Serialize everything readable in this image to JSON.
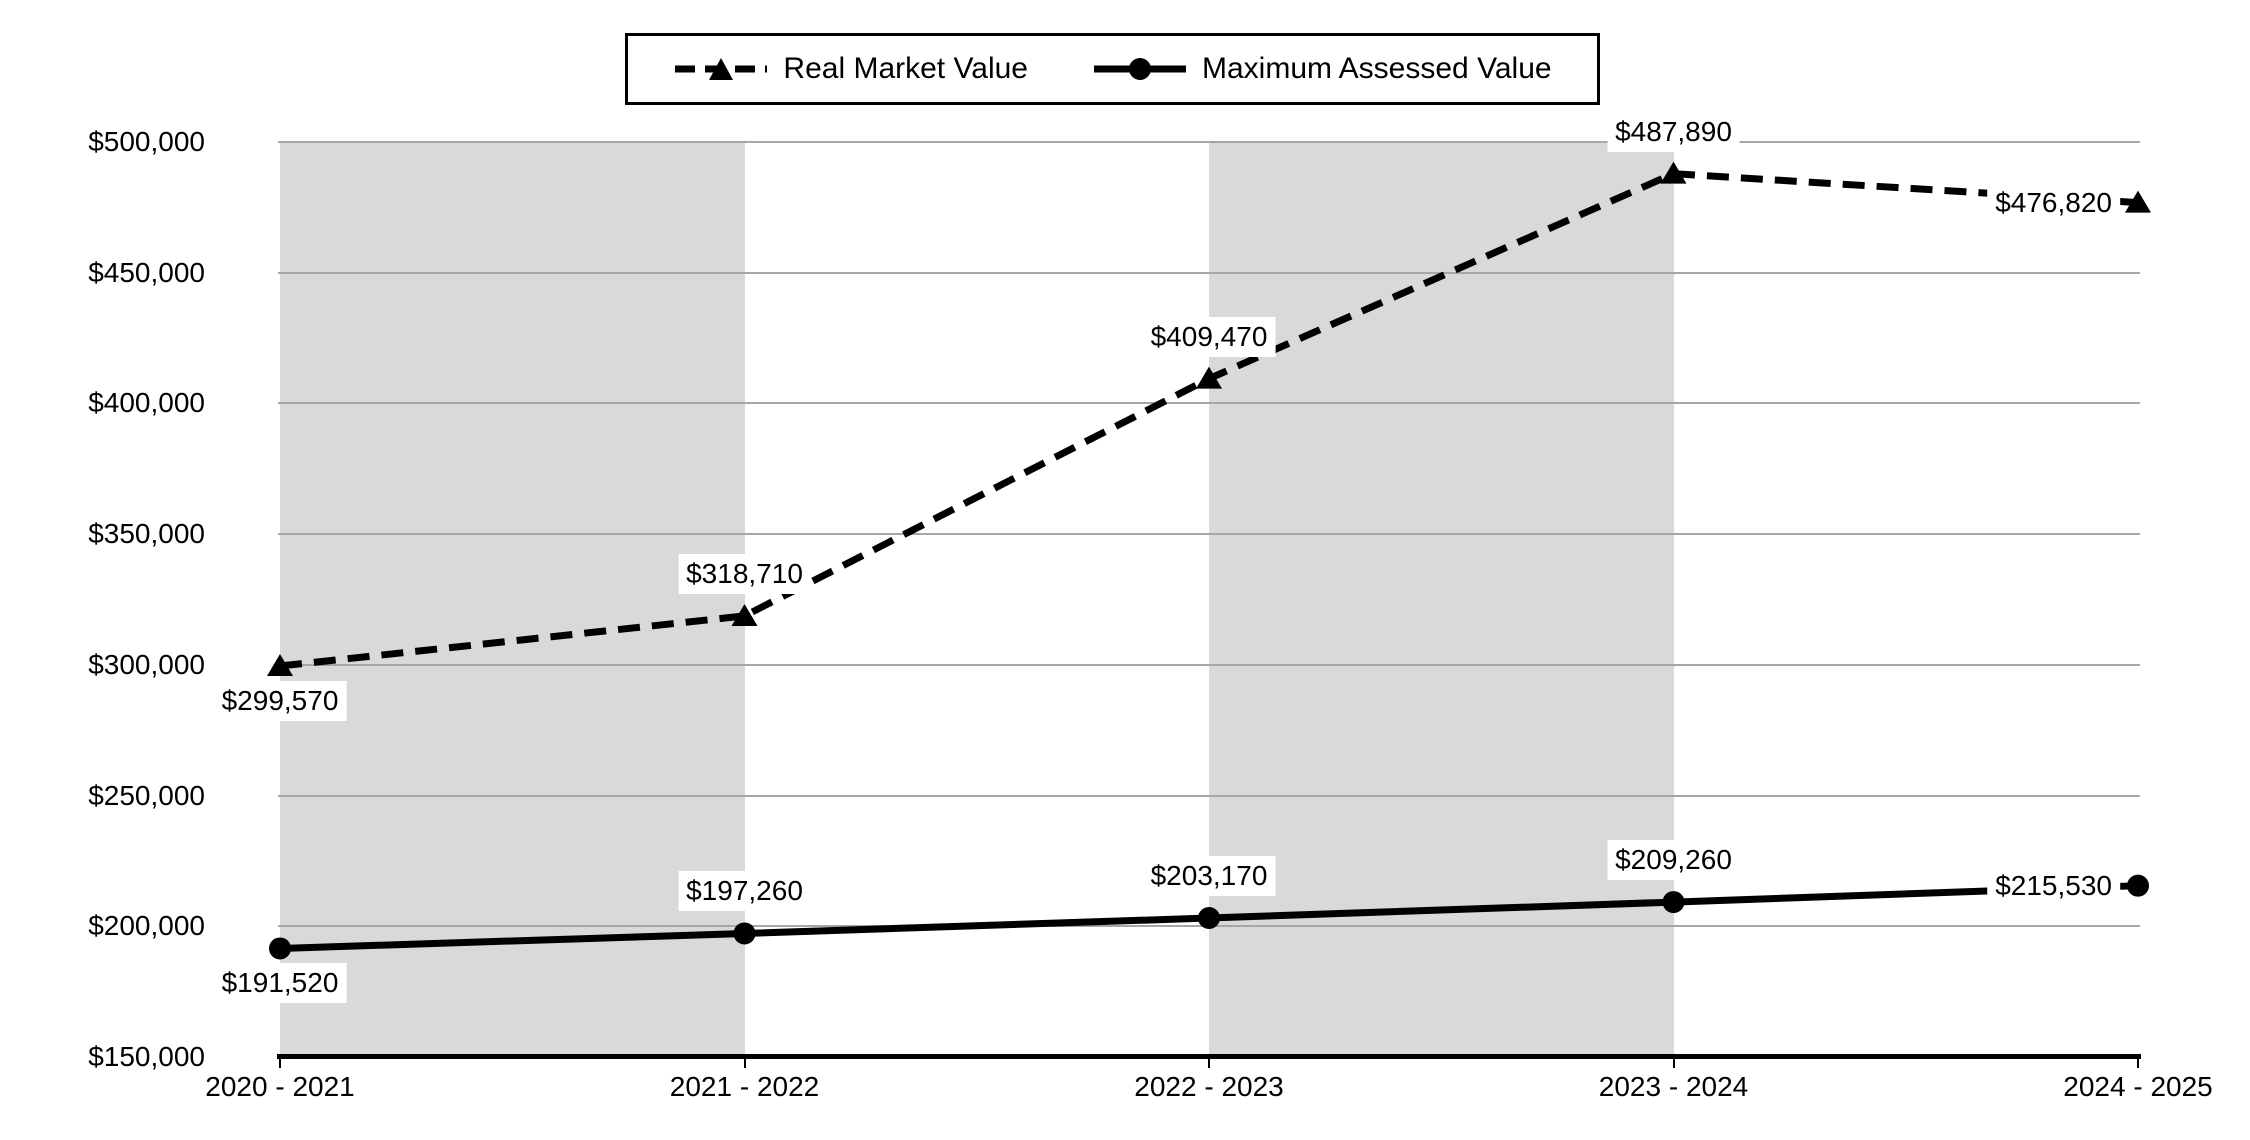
{
  "chart_data": {
    "type": "line",
    "title": "",
    "categories": [
      "2020 - 2021",
      "2021 - 2022",
      "2022 - 2023",
      "2023 - 2024",
      "2024 - 2025"
    ],
    "series": [
      {
        "name": "Real Market Value",
        "line_style": "dashed",
        "marker": "triangle",
        "values": [
          299570,
          318710,
          409470,
          487890,
          476820
        ],
        "labels": [
          "$299,570",
          "$318,710",
          "$409,470",
          "$487,890",
          "$476,820"
        ],
        "label_positions": [
          "below",
          "above",
          "above",
          "above",
          "left"
        ]
      },
      {
        "name": "Maximum Assessed Value",
        "line_style": "solid",
        "marker": "circle",
        "values": [
          191520,
          197260,
          203170,
          209260,
          215530
        ],
        "labels": [
          "$191,520",
          "$197,260",
          "$203,170",
          "$209,260",
          "$215,530"
        ],
        "label_positions": [
          "below",
          "above",
          "above",
          "above",
          "left"
        ]
      }
    ],
    "y_axis": {
      "min": 150000,
      "max": 500000,
      "step": 50000,
      "tick_labels": [
        "$150,000",
        "$200,000",
        "$250,000",
        "$300,000",
        "$350,000",
        "$400,000",
        "$450,000",
        "$500,000"
      ]
    },
    "grid": true,
    "legend_position": "top-center",
    "shaded_intervals": [
      0,
      2
    ],
    "colors": {
      "series": "#000000",
      "gridline": "#a6a6a6",
      "band": "#d9d9d9",
      "background": "#ffffff",
      "text": "#000000"
    }
  }
}
